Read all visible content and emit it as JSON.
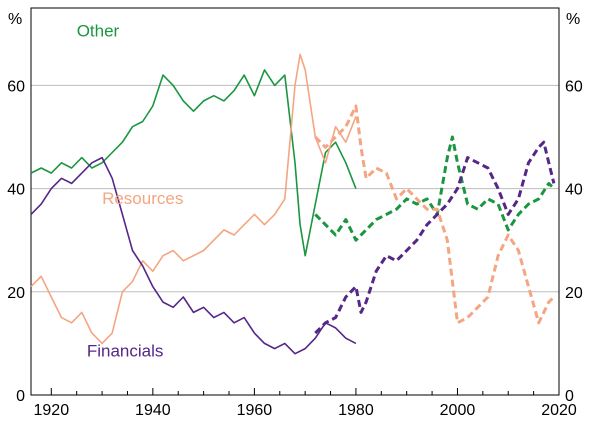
{
  "chart_data": {
    "type": "line",
    "title": "",
    "xlabel": "",
    "ylabel_left": "%",
    "ylabel_right": "%",
    "xlim": [
      1916,
      2020
    ],
    "ylim": [
      0,
      75
    ],
    "x_ticks": [
      1920,
      1940,
      1960,
      1980,
      2000,
      2020
    ],
    "y_ticks": [
      0,
      20,
      40,
      60
    ],
    "gridlines": "horizontal",
    "legend": "inline labels",
    "series": [
      {
        "name": "Other",
        "color": "#1a9641",
        "segments": [
          {
            "style": "solid",
            "points": [
              [
                1916,
                43
              ],
              [
                1918,
                44
              ],
              [
                1920,
                43
              ],
              [
                1922,
                45
              ],
              [
                1924,
                44
              ],
              [
                1926,
                46
              ],
              [
                1928,
                44
              ],
              [
                1930,
                45
              ],
              [
                1932,
                47
              ],
              [
                1934,
                49
              ],
              [
                1936,
                52
              ],
              [
                1938,
                53
              ],
              [
                1940,
                56
              ],
              [
                1942,
                62
              ],
              [
                1944,
                60
              ],
              [
                1946,
                57
              ],
              [
                1948,
                55
              ],
              [
                1950,
                57
              ],
              [
                1952,
                58
              ],
              [
                1954,
                57
              ],
              [
                1956,
                59
              ],
              [
                1958,
                62
              ],
              [
                1960,
                58
              ],
              [
                1962,
                63
              ],
              [
                1964,
                60
              ],
              [
                1966,
                62
              ],
              [
                1968,
                45
              ],
              [
                1969,
                33
              ],
              [
                1970,
                27
              ],
              [
                1972,
                37
              ],
              [
                1974,
                47
              ],
              [
                1976,
                49
              ],
              [
                1978,
                45
              ],
              [
                1980,
                40
              ]
            ]
          },
          {
            "style": "dashed",
            "points": [
              [
                1972,
                35
              ],
              [
                1974,
                33
              ],
              [
                1976,
                31
              ],
              [
                1978,
                34
              ],
              [
                1980,
                30
              ],
              [
                1982,
                32
              ],
              [
                1984,
                34
              ],
              [
                1986,
                35
              ],
              [
                1988,
                36
              ],
              [
                1990,
                38
              ],
              [
                1992,
                37
              ],
              [
                1994,
                38
              ],
              [
                1996,
                35
              ],
              [
                1998,
                46
              ],
              [
                1999,
                50
              ],
              [
                2000,
                45
              ],
              [
                2002,
                37
              ],
              [
                2004,
                36
              ],
              [
                2006,
                38
              ],
              [
                2008,
                37
              ],
              [
                2010,
                32
              ],
              [
                2012,
                35
              ],
              [
                2014,
                37
              ],
              [
                2016,
                38
              ],
              [
                2018,
                41
              ],
              [
                2019,
                40
              ]
            ]
          }
        ]
      },
      {
        "name": "Resources",
        "color": "#f4a582",
        "segments": [
          {
            "style": "solid",
            "points": [
              [
                1916,
                21
              ],
              [
                1918,
                23
              ],
              [
                1920,
                19
              ],
              [
                1922,
                15
              ],
              [
                1924,
                14
              ],
              [
                1926,
                16
              ],
              [
                1928,
                12
              ],
              [
                1930,
                10
              ],
              [
                1932,
                12
              ],
              [
                1934,
                20
              ],
              [
                1936,
                22
              ],
              [
                1938,
                26
              ],
              [
                1940,
                24
              ],
              [
                1942,
                27
              ],
              [
                1944,
                28
              ],
              [
                1946,
                26
              ],
              [
                1948,
                27
              ],
              [
                1950,
                28
              ],
              [
                1952,
                30
              ],
              [
                1954,
                32
              ],
              [
                1956,
                31
              ],
              [
                1958,
                33
              ],
              [
                1960,
                35
              ],
              [
                1962,
                33
              ],
              [
                1964,
                35
              ],
              [
                1966,
                38
              ],
              [
                1968,
                60
              ],
              [
                1969,
                66
              ],
              [
                1970,
                63
              ],
              [
                1972,
                50
              ],
              [
                1974,
                45
              ],
              [
                1976,
                52
              ],
              [
                1978,
                49
              ],
              [
                1980,
                54
              ]
            ]
          },
          {
            "style": "dashed",
            "points": [
              [
                1972,
                50
              ],
              [
                1974,
                48
              ],
              [
                1976,
                50
              ],
              [
                1978,
                52
              ],
              [
                1980,
                56
              ],
              [
                1981,
                48
              ],
              [
                1982,
                42
              ],
              [
                1984,
                44
              ],
              [
                1986,
                43
              ],
              [
                1988,
                38
              ],
              [
                1990,
                40
              ],
              [
                1992,
                38
              ],
              [
                1994,
                36
              ],
              [
                1996,
                36
              ],
              [
                1998,
                30
              ],
              [
                2000,
                14
              ],
              [
                2002,
                15
              ],
              [
                2004,
                17
              ],
              [
                2006,
                19
              ],
              [
                2008,
                27
              ],
              [
                2010,
                31
              ],
              [
                2012,
                28
              ],
              [
                2014,
                21
              ],
              [
                2016,
                14
              ],
              [
                2018,
                18
              ],
              [
                2019,
                19
              ]
            ]
          }
        ]
      },
      {
        "name": "Financials",
        "color": "#542788",
        "segments": [
          {
            "style": "solid",
            "points": [
              [
                1916,
                35
              ],
              [
                1918,
                37
              ],
              [
                1920,
                40
              ],
              [
                1922,
                42
              ],
              [
                1924,
                41
              ],
              [
                1926,
                43
              ],
              [
                1928,
                45
              ],
              [
                1930,
                46
              ],
              [
                1932,
                42
              ],
              [
                1934,
                35
              ],
              [
                1936,
                28
              ],
              [
                1938,
                25
              ],
              [
                1940,
                21
              ],
              [
                1942,
                18
              ],
              [
                1944,
                17
              ],
              [
                1946,
                19
              ],
              [
                1948,
                16
              ],
              [
                1950,
                17
              ],
              [
                1952,
                15
              ],
              [
                1954,
                16
              ],
              [
                1956,
                14
              ],
              [
                1958,
                15
              ],
              [
                1960,
                12
              ],
              [
                1962,
                10
              ],
              [
                1964,
                9
              ],
              [
                1966,
                10
              ],
              [
                1968,
                8
              ],
              [
                1970,
                9
              ],
              [
                1972,
                11
              ],
              [
                1974,
                14
              ],
              [
                1976,
                13
              ],
              [
                1978,
                11
              ],
              [
                1980,
                10
              ]
            ]
          },
          {
            "style": "dashed",
            "points": [
              [
                1972,
                12
              ],
              [
                1974,
                14
              ],
              [
                1976,
                15
              ],
              [
                1978,
                19
              ],
              [
                1980,
                21
              ],
              [
                1981,
                16
              ],
              [
                1982,
                18
              ],
              [
                1984,
                24
              ],
              [
                1986,
                27
              ],
              [
                1988,
                26
              ],
              [
                1990,
                28
              ],
              [
                1992,
                30
              ],
              [
                1994,
                33
              ],
              [
                1996,
                35
              ],
              [
                1998,
                37
              ],
              [
                2000,
                40
              ],
              [
                2002,
                46
              ],
              [
                2004,
                45
              ],
              [
                2006,
                44
              ],
              [
                2008,
                40
              ],
              [
                2010,
                35
              ],
              [
                2012,
                38
              ],
              [
                2014,
                45
              ],
              [
                2016,
                48
              ],
              [
                2017,
                49
              ],
              [
                2018,
                45
              ],
              [
                2019,
                41
              ]
            ]
          }
        ]
      }
    ],
    "labels": [
      {
        "text": "Other",
        "series": "Other",
        "x": 1925,
        "y": 69.5
      },
      {
        "text": "Resources",
        "series": "Resources",
        "x": 1930,
        "y": 37
      },
      {
        "text": "Financials",
        "series": "Financials",
        "x": 1927,
        "y": 7.5
      }
    ]
  }
}
